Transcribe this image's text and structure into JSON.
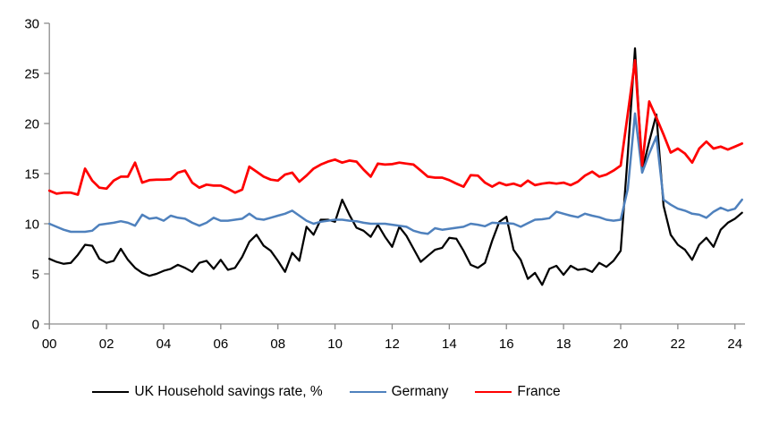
{
  "chart_data": {
    "type": "line",
    "title": "",
    "xlabel": "",
    "ylabel": "",
    "x_start": 0,
    "x_step": 0.25,
    "x_unit": "years since 2000, quarterly",
    "ylim": [
      0,
      30
    ],
    "y_ticks": [
      0,
      5,
      10,
      15,
      20,
      25,
      30
    ],
    "y_tick_labels": [
      "0",
      "5",
      "10",
      "15",
      "20",
      "25",
      "30"
    ],
    "x_ticks": [
      0,
      2,
      4,
      6,
      8,
      10,
      12,
      14,
      16,
      18,
      20,
      22,
      24
    ],
    "x_tick_labels": [
      "00",
      "02",
      "04",
      "06",
      "08",
      "10",
      "12",
      "14",
      "16",
      "18",
      "20",
      "22",
      "24"
    ],
    "grid": false,
    "legend_position": "bottom",
    "axis_color": "#8C8C8C",
    "series": [
      {
        "name": "UK Household savings rate, %",
        "color": "#000000",
        "stroke_width": 2.25,
        "values": [
          6.5,
          6.2,
          6.0,
          6.1,
          6.9,
          7.9,
          7.8,
          6.5,
          6.1,
          6.3,
          7.5,
          6.4,
          5.6,
          5.1,
          4.8,
          5.0,
          5.3,
          5.5,
          5.9,
          5.6,
          5.2,
          6.1,
          6.3,
          5.5,
          6.4,
          5.4,
          5.6,
          6.7,
          8.2,
          8.9,
          7.8,
          7.3,
          6.3,
          5.2,
          7.1,
          6.3,
          9.7,
          8.9,
          10.4,
          10.4,
          10.2,
          12.4,
          10.9,
          9.6,
          9.3,
          8.7,
          9.9,
          8.7,
          7.7,
          9.7,
          8.8,
          7.5,
          6.2,
          6.8,
          7.4,
          7.6,
          8.6,
          8.5,
          7.3,
          5.9,
          5.6,
          6.1,
          8.3,
          10.2,
          10.7,
          7.4,
          6.4,
          4.5,
          5.1,
          3.9,
          5.5,
          5.8,
          4.9,
          5.8,
          5.4,
          5.5,
          5.2,
          6.1,
          5.7,
          6.3,
          7.3,
          17.0,
          27.5,
          15.3,
          18.2,
          20.9,
          11.8,
          8.9,
          7.9,
          7.4,
          6.4,
          7.9,
          8.6,
          7.7,
          9.4,
          10.1,
          10.5,
          11.1
        ]
      },
      {
        "name": "Germany",
        "color": "#4F81BD",
        "stroke_width": 2.5,
        "values": [
          10.0,
          9.7,
          9.4,
          9.2,
          9.2,
          9.2,
          9.3,
          9.9,
          10.0,
          10.1,
          10.25,
          10.1,
          9.8,
          10.9,
          10.5,
          10.6,
          10.3,
          10.8,
          10.6,
          10.5,
          10.1,
          9.8,
          10.1,
          10.6,
          10.3,
          10.3,
          10.4,
          10.5,
          11.0,
          10.5,
          10.4,
          10.6,
          10.8,
          11.0,
          11.3,
          10.8,
          10.3,
          10.0,
          10.2,
          10.3,
          10.4,
          10.4,
          10.3,
          10.25,
          10.1,
          10.0,
          10.0,
          10.0,
          9.9,
          9.8,
          9.7,
          9.3,
          9.1,
          9.0,
          9.55,
          9.4,
          9.5,
          9.6,
          9.7,
          10.0,
          9.9,
          9.75,
          10.1,
          10.05,
          10.05,
          10.0,
          9.7,
          10.05,
          10.4,
          10.45,
          10.55,
          11.2,
          11.0,
          10.8,
          10.65,
          11.0,
          10.8,
          10.65,
          10.4,
          10.3,
          10.4,
          13.5,
          21.0,
          15.1,
          17.0,
          18.7,
          12.4,
          11.9,
          11.5,
          11.3,
          11.0,
          10.9,
          10.6,
          11.2,
          11.6,
          11.3,
          11.5,
          12.4
        ]
      },
      {
        "name": "France",
        "color": "#FF0000",
        "stroke_width": 2.75,
        "values": [
          13.3,
          13.0,
          13.1,
          13.1,
          12.9,
          15.5,
          14.3,
          13.6,
          13.5,
          14.3,
          14.7,
          14.7,
          16.1,
          14.1,
          14.35,
          14.4,
          14.4,
          14.45,
          15.1,
          15.3,
          14.1,
          13.6,
          13.9,
          13.8,
          13.8,
          13.5,
          13.1,
          13.4,
          15.7,
          15.2,
          14.7,
          14.4,
          14.3,
          14.9,
          15.1,
          14.2,
          14.8,
          15.5,
          15.9,
          16.2,
          16.4,
          16.1,
          16.3,
          16.2,
          15.4,
          14.7,
          16.0,
          15.9,
          15.95,
          16.1,
          16.0,
          15.9,
          15.3,
          14.7,
          14.6,
          14.6,
          14.35,
          14.0,
          13.7,
          14.85,
          14.8,
          14.1,
          13.7,
          14.1,
          13.85,
          14.0,
          13.75,
          14.3,
          13.85,
          14.0,
          14.1,
          14.0,
          14.1,
          13.85,
          14.2,
          14.8,
          15.2,
          14.7,
          14.9,
          15.3,
          15.8,
          21.0,
          26.3,
          15.8,
          22.2,
          20.6,
          18.9,
          17.1,
          17.5,
          17.0,
          16.1,
          17.5,
          18.2,
          17.5,
          17.7,
          17.4,
          17.7,
          18.0
        ]
      }
    ]
  },
  "legend": {
    "uk_label": "UK Household savings rate, %",
    "germany_label": "Germany",
    "france_label": "France"
  }
}
